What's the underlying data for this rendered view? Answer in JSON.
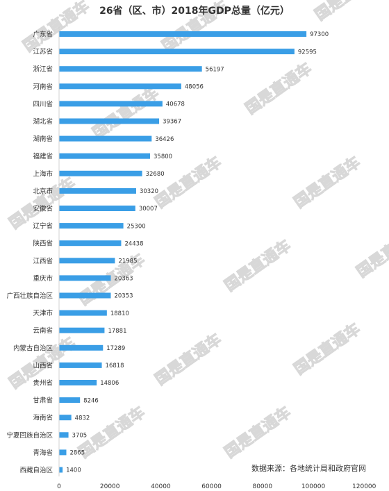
{
  "chart_data": {
    "type": "bar",
    "orientation": "horizontal",
    "title": "26省（区、市）2018年GDP总量（亿元）",
    "categories": [
      "广东省",
      "江苏省",
      "浙江省",
      "河南省",
      "四川省",
      "湖北省",
      "湖南省",
      "福建省",
      "上海市",
      "北京市",
      "安徽省",
      "辽宁省",
      "陕西省",
      "江西省",
      "重庆市",
      "广西壮族自治区",
      "天津市",
      "云南省",
      "内蒙古自治区",
      "山西省",
      "贵州省",
      "甘肃省",
      "海南省",
      "宁夏回族自治区",
      "青海省",
      "西藏自治区"
    ],
    "values": [
      97300,
      92595,
      56197,
      48056,
      40678,
      39367,
      36426,
      35800,
      32680,
      30320,
      30007,
      25300,
      24438,
      21985,
      20363,
      20353,
      18810,
      17881,
      17289,
      16818,
      14806,
      8246,
      4832,
      3705,
      2865,
      1400
    ],
    "xlim": [
      0,
      120000
    ],
    "xticks": [
      "0",
      "20000",
      "40000",
      "60000",
      "80000",
      "100000",
      "120000"
    ],
    "grid": false,
    "bar_color": "#3a9ee6"
  },
  "source_note": "数据来源：各地统计局和政府官网",
  "watermark": "国是直通车"
}
